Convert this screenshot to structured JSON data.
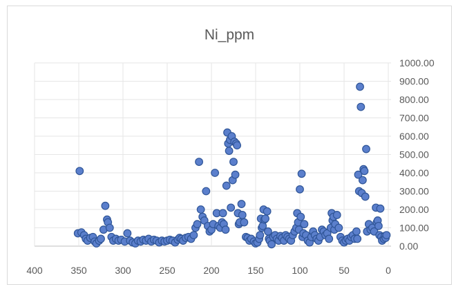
{
  "chart_data": {
    "type": "scatter",
    "title": "Ni_ppm",
    "xlim": [
      400,
      0
    ],
    "ylim": [
      0,
      1000
    ],
    "x_ticks": [
      "400",
      "350",
      "300",
      "250",
      "200",
      "150",
      "100",
      "50",
      "0"
    ],
    "y_ticks": [
      "0.00",
      "100.00",
      "200.00",
      "300.00",
      "400.00",
      "500.00",
      "600.00",
      "700.00",
      "800.00",
      "900.00",
      "1000.00"
    ],
    "y_axis_position": "right",
    "x_axis_reversed": true,
    "grid": true,
    "marker_color": "#5b7fcc",
    "marker_edge_color": "#2f5597",
    "points": [
      [
        349,
        410
      ],
      [
        351,
        70
      ],
      [
        347,
        75
      ],
      [
        344,
        60
      ],
      [
        342,
        40
      ],
      [
        340,
        30
      ],
      [
        337,
        45
      ],
      [
        334,
        50
      ],
      [
        332,
        25
      ],
      [
        330,
        15
      ],
      [
        327,
        30
      ],
      [
        325,
        40
      ],
      [
        322,
        90
      ],
      [
        320,
        220
      ],
      [
        318,
        145
      ],
      [
        317,
        130
      ],
      [
        315,
        100
      ],
      [
        313,
        50
      ],
      [
        311,
        30
      ],
      [
        308,
        40
      ],
      [
        305,
        30
      ],
      [
        302,
        35
      ],
      [
        298,
        25
      ],
      [
        295,
        70
      ],
      [
        292,
        30
      ],
      [
        289,
        20
      ],
      [
        286,
        15
      ],
      [
        283,
        30
      ],
      [
        280,
        25
      ],
      [
        277,
        35
      ],
      [
        274,
        30
      ],
      [
        271,
        40
      ],
      [
        268,
        25
      ],
      [
        265,
        35
      ],
      [
        262,
        30
      ],
      [
        259,
        20
      ],
      [
        256,
        30
      ],
      [
        253,
        25
      ],
      [
        250,
        30
      ],
      [
        247,
        35
      ],
      [
        244,
        30
      ],
      [
        241,
        20
      ],
      [
        238,
        35
      ],
      [
        236,
        45
      ],
      [
        234,
        40
      ],
      [
        232,
        30
      ],
      [
        229,
        45
      ],
      [
        226,
        50
      ],
      [
        223,
        40
      ],
      [
        220,
        60
      ],
      [
        218,
        100
      ],
      [
        216,
        120
      ],
      [
        214,
        460
      ],
      [
        212,
        200
      ],
      [
        210,
        160
      ],
      [
        208,
        140
      ],
      [
        206,
        300
      ],
      [
        204,
        110
      ],
      [
        202,
        80
      ],
      [
        200,
        90
      ],
      [
        198,
        120
      ],
      [
        196,
        400
      ],
      [
        194,
        180
      ],
      [
        192,
        110
      ],
      [
        190,
        100
      ],
      [
        188,
        130
      ],
      [
        187,
        180
      ],
      [
        186,
        120
      ],
      [
        184,
        90
      ],
      [
        183,
        330
      ],
      [
        182,
        620
      ],
      [
        181,
        560
      ],
      [
        180,
        520
      ],
      [
        179,
        580
      ],
      [
        178,
        210
      ],
      [
        177,
        600
      ],
      [
        176,
        360
      ],
      [
        175,
        460
      ],
      [
        174,
        570
      ],
      [
        173,
        390
      ],
      [
        172,
        560
      ],
      [
        171,
        550
      ],
      [
        170,
        180
      ],
      [
        169,
        120
      ],
      [
        168,
        130
      ],
      [
        166,
        230
      ],
      [
        165,
        170
      ],
      [
        163,
        130
      ],
      [
        161,
        50
      ],
      [
        159,
        45
      ],
      [
        157,
        30
      ],
      [
        155,
        40
      ],
      [
        152,
        25
      ],
      [
        150,
        15
      ],
      [
        148,
        20
      ],
      [
        146,
        40
      ],
      [
        145,
        60
      ],
      [
        144,
        150
      ],
      [
        143,
        100
      ],
      [
        142,
        110
      ],
      [
        141,
        200
      ],
      [
        140,
        145
      ],
      [
        139,
        150
      ],
      [
        137,
        190
      ],
      [
        136,
        80
      ],
      [
        135,
        40
      ],
      [
        134,
        30
      ],
      [
        132,
        10
      ],
      [
        130,
        50
      ],
      [
        128,
        60
      ],
      [
        126,
        40
      ],
      [
        124,
        30
      ],
      [
        122,
        55
      ],
      [
        120,
        45
      ],
      [
        118,
        30
      ],
      [
        116,
        60
      ],
      [
        114,
        50
      ],
      [
        112,
        40
      ],
      [
        110,
        30
      ],
      [
        108,
        60
      ],
      [
        106,
        80
      ],
      [
        104,
        100
      ],
      [
        103,
        180
      ],
      [
        102,
        130
      ],
      [
        101,
        90
      ],
      [
        100,
        310
      ],
      [
        99,
        160
      ],
      [
        98,
        395
      ],
      [
        97,
        50
      ],
      [
        96,
        70
      ],
      [
        95,
        120
      ],
      [
        93,
        60
      ],
      [
        91,
        30
      ],
      [
        89,
        20
      ],
      [
        87,
        50
      ],
      [
        85,
        80
      ],
      [
        83,
        60
      ],
      [
        81,
        40
      ],
      [
        79,
        30
      ],
      [
        77,
        50
      ],
      [
        75,
        90
      ],
      [
        73,
        80
      ],
      [
        71,
        60
      ],
      [
        69,
        70
      ],
      [
        67,
        40
      ],
      [
        65,
        100
      ],
      [
        64,
        180
      ],
      [
        63,
        140
      ],
      [
        62,
        160
      ],
      [
        61,
        90
      ],
      [
        60,
        120
      ],
      [
        58,
        170
      ],
      [
        56,
        100
      ],
      [
        54,
        50
      ],
      [
        52,
        30
      ],
      [
        50,
        20
      ],
      [
        48,
        30
      ],
      [
        46,
        40
      ],
      [
        44,
        30
      ],
      [
        42,
        50
      ],
      [
        40,
        60
      ],
      [
        38,
        40
      ],
      [
        36,
        80
      ],
      [
        35,
        40
      ],
      [
        34,
        390
      ],
      [
        33,
        300
      ],
      [
        32,
        870
      ],
      [
        31,
        760
      ],
      [
        30,
        290
      ],
      [
        29,
        360
      ],
      [
        28,
        420
      ],
      [
        27,
        410
      ],
      [
        26,
        270
      ],
      [
        25,
        530
      ],
      [
        24,
        80
      ],
      [
        22,
        120
      ],
      [
        20,
        90
      ],
      [
        18,
        100
      ],
      [
        16,
        80
      ],
      [
        14,
        210
      ],
      [
        13,
        130
      ],
      [
        12,
        140
      ],
      [
        11,
        110
      ],
      [
        10,
        60
      ],
      [
        9,
        205
      ],
      [
        8,
        50
      ],
      [
        7,
        30
      ],
      [
        5,
        40
      ],
      [
        4,
        55
      ],
      [
        3,
        45
      ],
      [
        2,
        60
      ]
    ]
  }
}
